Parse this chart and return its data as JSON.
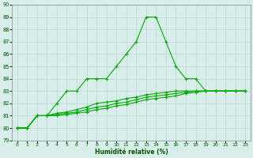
{
  "title": "",
  "xlabel": "Humidité relative (%)",
  "ylabel": "",
  "xlim": [
    -0.5,
    23.5
  ],
  "ylim": [
    79,
    90
  ],
  "yticks": [
    79,
    80,
    81,
    82,
    83,
    84,
    85,
    86,
    87,
    88,
    89,
    90
  ],
  "xticks": [
    0,
    1,
    2,
    3,
    4,
    5,
    6,
    7,
    8,
    9,
    10,
    11,
    12,
    13,
    14,
    15,
    16,
    17,
    18,
    19,
    20,
    21,
    22,
    23
  ],
  "bg_color": "#d9eeeb",
  "grid_color": "#aed4ce",
  "line_color": "#00aa00",
  "line1_y": [
    80,
    80,
    81,
    81,
    82,
    83,
    83,
    84,
    84,
    84,
    85,
    86,
    87,
    89,
    89,
    87,
    85,
    84,
    84,
    83,
    83,
    83,
    83,
    83
  ],
  "line2_y": [
    80,
    80,
    81,
    81,
    81.2,
    81.3,
    81.5,
    81.7,
    82,
    82.1,
    82.2,
    82.4,
    82.5,
    82.7,
    82.8,
    82.9,
    83,
    83,
    83,
    83,
    83,
    83,
    83,
    83
  ],
  "line3_y": [
    80,
    80,
    81,
    81,
    81.1,
    81.2,
    81.3,
    81.5,
    81.7,
    81.8,
    82,
    82.1,
    82.3,
    82.5,
    82.6,
    82.7,
    82.8,
    82.9,
    83,
    83,
    83,
    83,
    83,
    83
  ],
  "line4_y": [
    80,
    80,
    81,
    81,
    81.0,
    81.1,
    81.2,
    81.3,
    81.5,
    81.6,
    81.8,
    81.9,
    82.1,
    82.3,
    82.4,
    82.5,
    82.6,
    82.8,
    82.9,
    83,
    83,
    83,
    83,
    83
  ],
  "marker": "+",
  "linewidth": 0.8,
  "markersize": 3.5,
  "markeredgewidth": 0.8
}
